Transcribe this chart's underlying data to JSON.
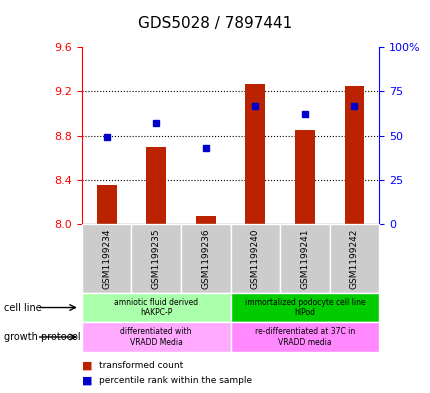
{
  "title": "GDS5028 / 7897441",
  "samples": [
    "GSM1199234",
    "GSM1199235",
    "GSM1199236",
    "GSM1199240",
    "GSM1199241",
    "GSM1199242"
  ],
  "bar_values": [
    8.35,
    8.7,
    8.07,
    9.27,
    8.85,
    9.25
  ],
  "bar_base": 8.0,
  "percentile_values": [
    49,
    57,
    43,
    67,
    62,
    67
  ],
  "left_ylim": [
    8.0,
    9.6
  ],
  "right_ylim": [
    0,
    100
  ],
  "left_yticks": [
    8.0,
    8.4,
    8.8,
    9.2,
    9.6
  ],
  "right_yticks": [
    0,
    25,
    50,
    75,
    100
  ],
  "right_yticklabels": [
    "0",
    "25",
    "50",
    "75",
    "100%"
  ],
  "bar_color": "#bb2200",
  "marker_color": "#0000cc",
  "cell_line_groups": [
    {
      "label": "amniotic fluid derived\nhAKPC-P",
      "start": 0,
      "end": 3,
      "color": "#aaffaa"
    },
    {
      "label": "immortalized podocyte cell line\nhIPod",
      "start": 3,
      "end": 6,
      "color": "#00cc00"
    }
  ],
  "growth_protocol_groups": [
    {
      "label": "differentiated with\nVRADD Media",
      "start": 0,
      "end": 3,
      "color": "#ffaaff"
    },
    {
      "label": "re-differentiated at 37C in\nVRADD media",
      "start": 3,
      "end": 6,
      "color": "#ff88ff"
    }
  ],
  "cell_line_label": "cell line",
  "growth_protocol_label": "growth protocol",
  "figure_width": 4.31,
  "figure_height": 3.93,
  "dpi": 100
}
